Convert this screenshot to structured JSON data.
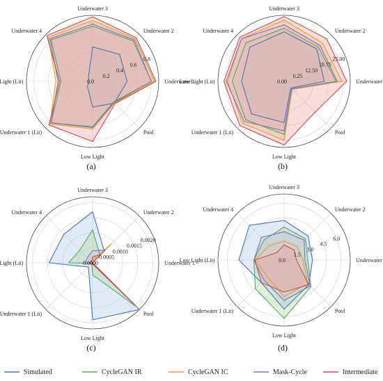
{
  "chart_data": [
    {
      "type": "radar",
      "panel_label": "(a)",
      "axes": [
        "Underwater 1",
        "Underwater 2",
        "Underwater 3",
        "Underwater 4",
        "Low Light (Lit)",
        "Underwater 1 (Lit)",
        "Low Light",
        "Pool"
      ],
      "rmax": 0.9,
      "ticks": [
        0.0,
        0.2,
        0.4,
        0.6,
        0.8
      ],
      "tick_labels": [
        "0.0",
        "0.2",
        "0.4",
        "0.6",
        "0.8"
      ],
      "series": [
        {
          "values": [
            0.47,
            0.52,
            0.47,
            0.08,
            0.05,
            0.1,
            0.35,
            0.42
          ]
        },
        {
          "values": [
            0.8,
            0.78,
            0.75,
            0.8,
            0.43,
            0.8,
            0.62,
            0.4
          ]
        },
        {
          "values": [
            0.84,
            0.82,
            0.83,
            0.85,
            0.5,
            0.82,
            0.65,
            0.42
          ]
        },
        {
          "values": [
            0.8,
            0.8,
            0.78,
            0.82,
            0.47,
            0.8,
            0.63,
            0.41
          ]
        },
        {
          "values": [
            0.86,
            0.84,
            0.88,
            0.88,
            0.45,
            0.84,
            0.82,
            0.43
          ]
        }
      ]
    },
    {
      "type": "radar",
      "panel_label": "(b)",
      "axes": [
        "Underwater 1",
        "Underwater 2",
        "Underwater 3",
        "Underwater 4",
        "Low Light (Lit)",
        "Underwater 1 (Lit)",
        "Low Light",
        "Pool"
      ],
      "rmax": 28,
      "ticks": [
        0.0,
        6.25,
        12.5,
        18.75,
        25.0
      ],
      "tick_labels": [
        "0.00",
        "6.25",
        "12.50",
        "18.75",
        "25.00"
      ],
      "series": [
        {
          "values": [
            17.0,
            19.5,
            21.0,
            20.5,
            18.0,
            19.5,
            17.5,
            4.0
          ]
        },
        {
          "values": [
            22.0,
            20.5,
            22.5,
            23.0,
            22.0,
            23.0,
            22.5,
            4.5
          ]
        },
        {
          "values": [
            24.5,
            23.0,
            26.0,
            25.5,
            24.0,
            25.0,
            25.0,
            4.8
          ]
        },
        {
          "values": [
            22.5,
            21.5,
            24.0,
            25.5,
            24.5,
            24.0,
            21.0,
            4.5
          ]
        },
        {
          "values": [
            26.5,
            25.5,
            27.5,
            26.5,
            25.5,
            26.5,
            27.0,
            18.5
          ]
        }
      ]
    },
    {
      "type": "radar",
      "panel_label": "(c)",
      "axes": [
        "Underwater 1",
        "Underwater 2",
        "Underwater 3",
        "Underwater 4",
        "Low Light (Lit)",
        "Underwater 1 (Lit)",
        "Low Light",
        "Pool"
      ],
      "rmax": 0.0022,
      "ticks": [
        0.0,
        0.0005,
        0.001,
        0.0015,
        0.002
      ],
      "tick_labels": [
        "0.0000",
        "0.0005",
        "0.0010",
        "0.0015",
        "0.0020"
      ],
      "series": [
        {
          "values": [
            0.0,
            0.00055,
            0.0017,
            0.00135,
            0.00145,
            0.0002,
            0.0019,
            0.0022
          ]
        },
        {
          "values": [
            0.0,
            0.00035,
            0.0011,
            0.0006,
            0.0008,
            3e-05,
            0.0004,
            0.0021
          ]
        },
        {
          "values": [
            0.0,
            0.0009,
            0.0001,
            5e-05,
            0.00015,
            3e-05,
            3e-05,
            0.002
          ]
        },
        {
          "values": [
            0.0,
            0.0006,
            0.0004,
            0.00025,
            0.00025,
            2e-05,
            3e-05,
            0.002
          ]
        },
        {
          "values": [
            0.0,
            0.0004,
            0.0002,
            5e-05,
            0.0001,
            3e-05,
            4e-05,
            0.002
          ]
        }
      ]
    },
    {
      "type": "radar",
      "panel_label": "(d)",
      "axes": [
        "Underwater 1",
        "Underwater 2",
        "Underwater 3",
        "Underwater 4",
        "Low Light (Lit)",
        "Underwater 1 (Lit)",
        "Low Light",
        "Pool"
      ],
      "rmax": 7,
      "ticks": [
        0.0,
        1.5,
        3.0,
        4.5,
        6.0
      ],
      "tick_labels": [
        "0.0",
        "1.5",
        "3.0",
        "4.5",
        "6.0"
      ],
      "series": [
        {
          "values": [
            3.0,
            3.6,
            4.2,
            5.2,
            4.8,
            3.4,
            5.2,
            3.7
          ]
        },
        {
          "values": [
            2.5,
            3.2,
            3.5,
            3.0,
            3.2,
            4.3,
            6.2,
            4.0
          ]
        },
        {
          "values": [
            2.0,
            2.0,
            2.0,
            2.2,
            3.1,
            2.5,
            3.9,
            3.5
          ]
        },
        {
          "values": [
            2.2,
            3.0,
            3.0,
            3.4,
            3.2,
            3.0,
            4.3,
            3.9
          ]
        },
        {
          "values": [
            1.3,
            1.5,
            1.6,
            1.1,
            3.1,
            3.4,
            3.4,
            3.7
          ]
        }
      ]
    }
  ],
  "legend": [
    {
      "label": "Simulated",
      "color": "#4c72b0"
    },
    {
      "label": "CycleGAN IR",
      "color": "#55a868"
    },
    {
      "label": "CycleGAN IC",
      "color": "#dd9f33"
    },
    {
      "label": "Mask-Cycle",
      "color": "#8172b2"
    },
    {
      "label": "Intermediate",
      "color": "#c44e52"
    }
  ],
  "fill_colors": [
    "#a7c6e8",
    "#a8d59a",
    "#f5cc8a",
    "#c9b8e2",
    "#ef9a98"
  ]
}
